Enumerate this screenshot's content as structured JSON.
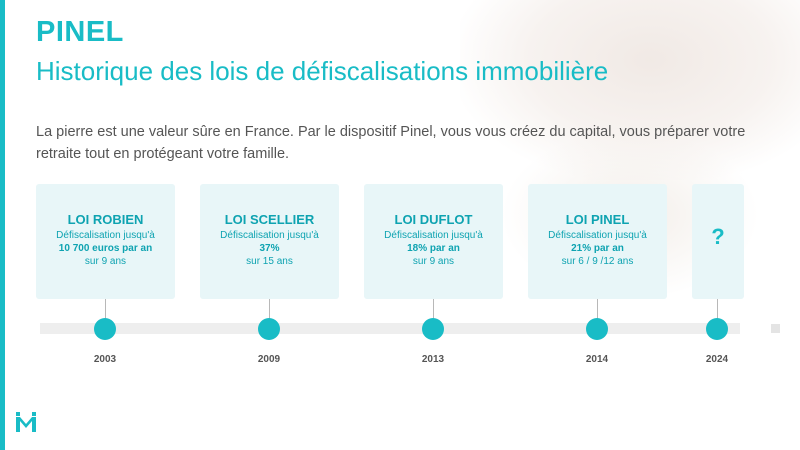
{
  "header": {
    "title": "PINEL",
    "subtitle": "Historique des lois de défiscalisations immobilière"
  },
  "intro": "La pierre est une valeur sûre en France. Par le dispositif Pinel, vous vous créez du capital, vous préparer votre retraite tout en protégeant votre famille.",
  "timeline": [
    {
      "title": "LOI ROBIEN",
      "line1": "Défiscalisation jusqu'à",
      "line2": "10 700 euros par an",
      "line3": "sur 9 ans",
      "year": "2003"
    },
    {
      "title": "LOI SCELLIER",
      "line1": "Défiscalisation jusqu'à",
      "line2": "37%",
      "line3": "sur 15 ans",
      "year": "2009"
    },
    {
      "title": "LOI DUFLOT",
      "line1": "Défiscalisation jusqu'à",
      "line2": "18% par an",
      "line3": "sur 9 ans",
      "year": "2013"
    },
    {
      "title": "LOI PINEL",
      "line1": "Défiscalisation jusqu'à",
      "line2": "21% par an",
      "line3": "sur 6 / 9 /12 ans",
      "year": "2014"
    },
    {
      "title": "?",
      "year": "2024"
    }
  ],
  "brand": {
    "accent": "#19bcc6",
    "card_bg": "#e8f6f8",
    "logo_icon": "brand-logo-icon"
  }
}
